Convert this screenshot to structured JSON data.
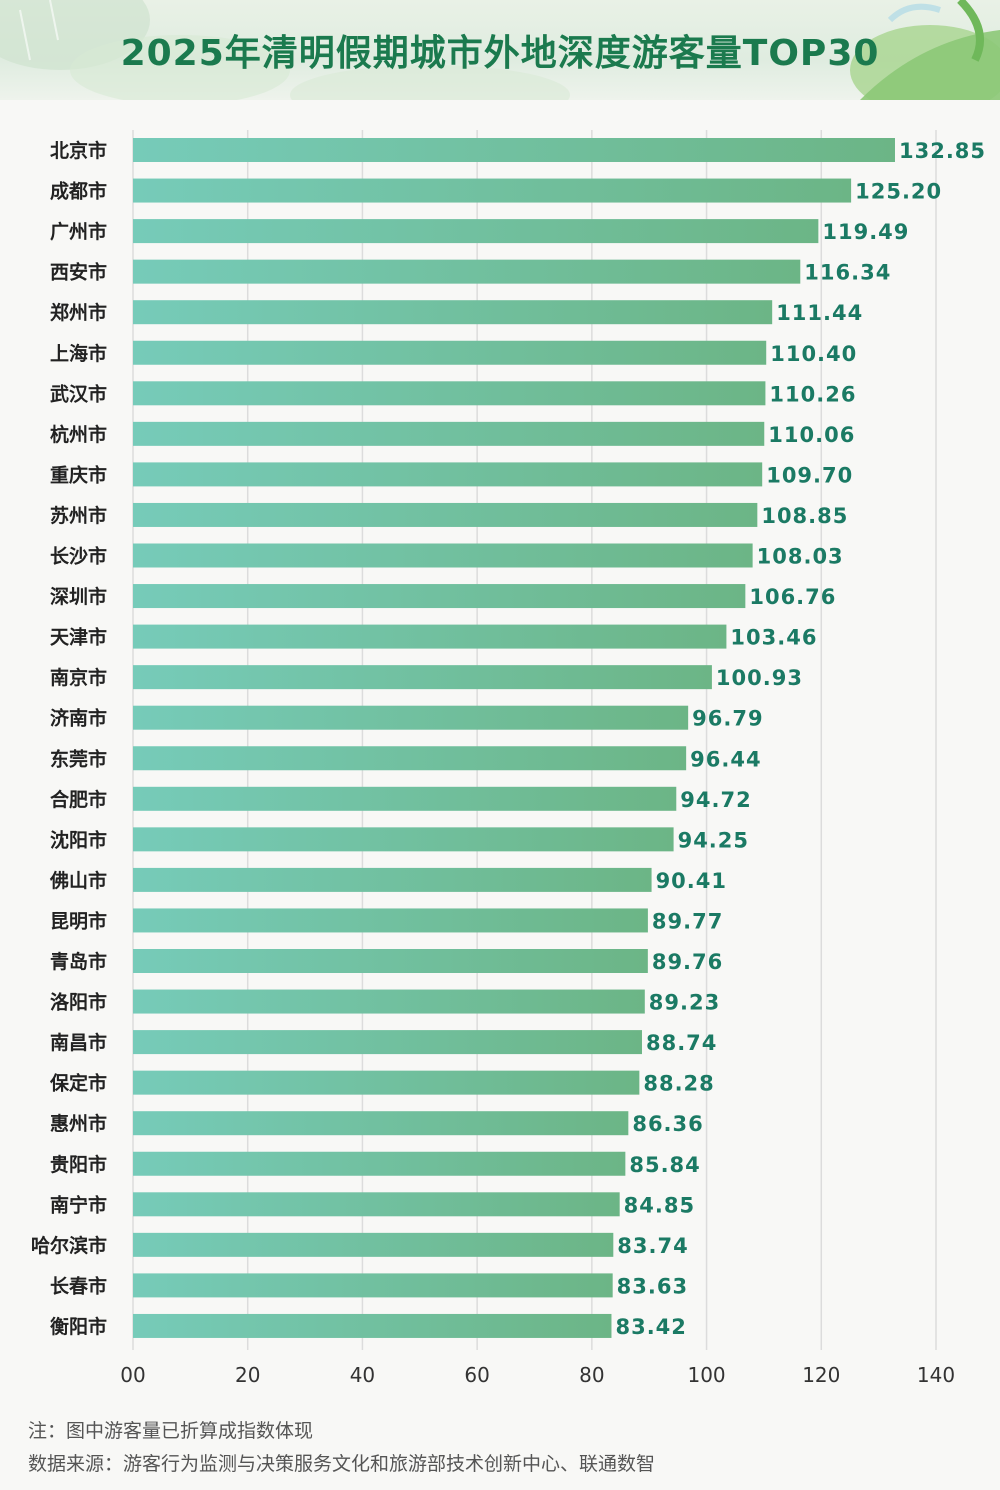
{
  "title": "2025年清明假期城市外地深度游客量TOP30",
  "notes": {
    "note": "注：图中游客量已折算成指数体现",
    "source": "数据来源：游客行为监测与决策服务文化和旅游部技术创新中心、联通数智"
  },
  "colors": {
    "title": "#1b7a4e",
    "bar_start": "#76cbb9",
    "bar_end": "#6cb586",
    "value_label": "#1b7a64",
    "grid": "#dcdcdc"
  },
  "chart_data": {
    "type": "bar",
    "orientation": "horizontal",
    "categories": [
      "北京市",
      "成都市",
      "广州市",
      "西安市",
      "郑州市",
      "上海市",
      "武汉市",
      "杭州市",
      "重庆市",
      "苏州市",
      "长沙市",
      "深圳市",
      "天津市",
      "南京市",
      "济南市",
      "东莞市",
      "合肥市",
      "沈阳市",
      "佛山市",
      "昆明市",
      "青岛市",
      "洛阳市",
      "南昌市",
      "保定市",
      "惠州市",
      "贵阳市",
      "南宁市",
      "哈尔滨市",
      "长春市",
      "衡阳市"
    ],
    "values": [
      132.85,
      125.2,
      119.49,
      116.34,
      111.44,
      110.4,
      110.26,
      110.06,
      109.7,
      108.85,
      108.03,
      106.76,
      103.46,
      100.93,
      96.79,
      96.44,
      94.72,
      94.25,
      90.41,
      89.77,
      89.76,
      89.23,
      88.74,
      88.28,
      86.36,
      85.84,
      84.85,
      83.74,
      83.63,
      83.42
    ],
    "value_labels": [
      "132.85",
      "125.20",
      "119.49",
      "116.34",
      "111.44",
      "110.40",
      "110.26",
      "110.06",
      "109.70",
      "108.85",
      "108.03",
      "106.76",
      "103.46",
      "100.93",
      "96.79",
      "96.44",
      "94.72",
      "94.25",
      "90.41",
      "89.77",
      "89.76",
      "89.23",
      "88.74",
      "88.28",
      "86.36",
      "85.84",
      "84.85",
      "83.74",
      "83.63",
      "83.42"
    ],
    "xlim": [
      0,
      140
    ],
    "x_ticks": [
      0,
      20,
      40,
      60,
      80,
      100,
      120,
      140
    ],
    "x_tick_labels": [
      "00",
      "20",
      "40",
      "60",
      "80",
      "100",
      "120",
      "140"
    ],
    "grid": true
  }
}
